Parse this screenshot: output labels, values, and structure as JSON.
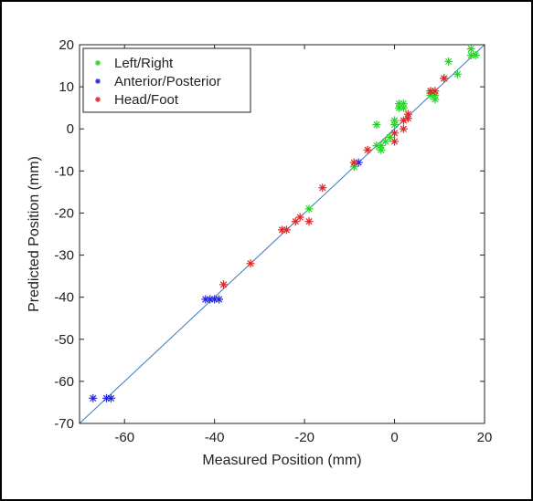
{
  "chart_data": {
    "type": "scatter",
    "xlabel": "Measured Position (mm)",
    "ylabel": "Predicted Position (mm)",
    "xlim": [
      -70,
      20
    ],
    "ylim": [
      -70,
      20
    ],
    "xticks": [
      -60,
      -40,
      -20,
      0,
      20
    ],
    "yticks": [
      20,
      10,
      0,
      -10,
      -20,
      -30,
      -40,
      -50,
      -60,
      -70
    ],
    "grid": false,
    "legend_position": "top-left",
    "reference_line": {
      "from": [
        -70,
        -70
      ],
      "to": [
        20,
        20
      ],
      "color": "#3a78c2"
    },
    "series": [
      {
        "name": "Left/Right",
        "color": "#22d622",
        "marker": "asterisk",
        "points": [
          [
            17,
            19
          ],
          [
            17,
            17.5
          ],
          [
            18,
            17.5
          ],
          [
            12,
            16
          ],
          [
            14,
            13
          ],
          [
            11,
            12
          ],
          [
            8,
            8.5
          ],
          [
            8,
            8
          ],
          [
            9,
            8
          ],
          [
            9,
            7
          ],
          [
            2,
            6
          ],
          [
            1,
            6
          ],
          [
            1,
            5
          ],
          [
            2,
            5
          ],
          [
            0,
            2
          ],
          [
            0,
            1
          ],
          [
            -4,
            1
          ],
          [
            -1,
            -2
          ],
          [
            -2,
            -3
          ],
          [
            -3,
            -4
          ],
          [
            -3,
            -5
          ],
          [
            -4,
            -4
          ],
          [
            -9,
            -9
          ],
          [
            -19,
            -19
          ]
        ]
      },
      {
        "name": "Anterior/Posterior",
        "color": "#2525e0",
        "marker": "asterisk",
        "points": [
          [
            -8,
            -8
          ],
          [
            -42,
            -40.5
          ],
          [
            -41,
            -40.5
          ],
          [
            -40,
            -40.5
          ],
          [
            -39,
            -40.5
          ],
          [
            -67,
            -64
          ],
          [
            -64,
            -64
          ],
          [
            -63,
            -64
          ]
        ]
      },
      {
        "name": "Head/Foot",
        "color": "#e02525",
        "marker": "asterisk",
        "points": [
          [
            9,
            9
          ],
          [
            8,
            9
          ],
          [
            11,
            12
          ],
          [
            3,
            3.5
          ],
          [
            3,
            2.5
          ],
          [
            2,
            2
          ],
          [
            2,
            0
          ],
          [
            0,
            -1
          ],
          [
            0,
            -3
          ],
          [
            -6,
            -5
          ],
          [
            -9,
            -8
          ],
          [
            -16,
            -14
          ],
          [
            -19,
            -22
          ],
          [
            -21,
            -21
          ],
          [
            -22,
            -22
          ],
          [
            -24,
            -24
          ],
          [
            -25,
            -24
          ],
          [
            -32,
            -32
          ],
          [
            -38,
            -37
          ]
        ]
      }
    ]
  }
}
